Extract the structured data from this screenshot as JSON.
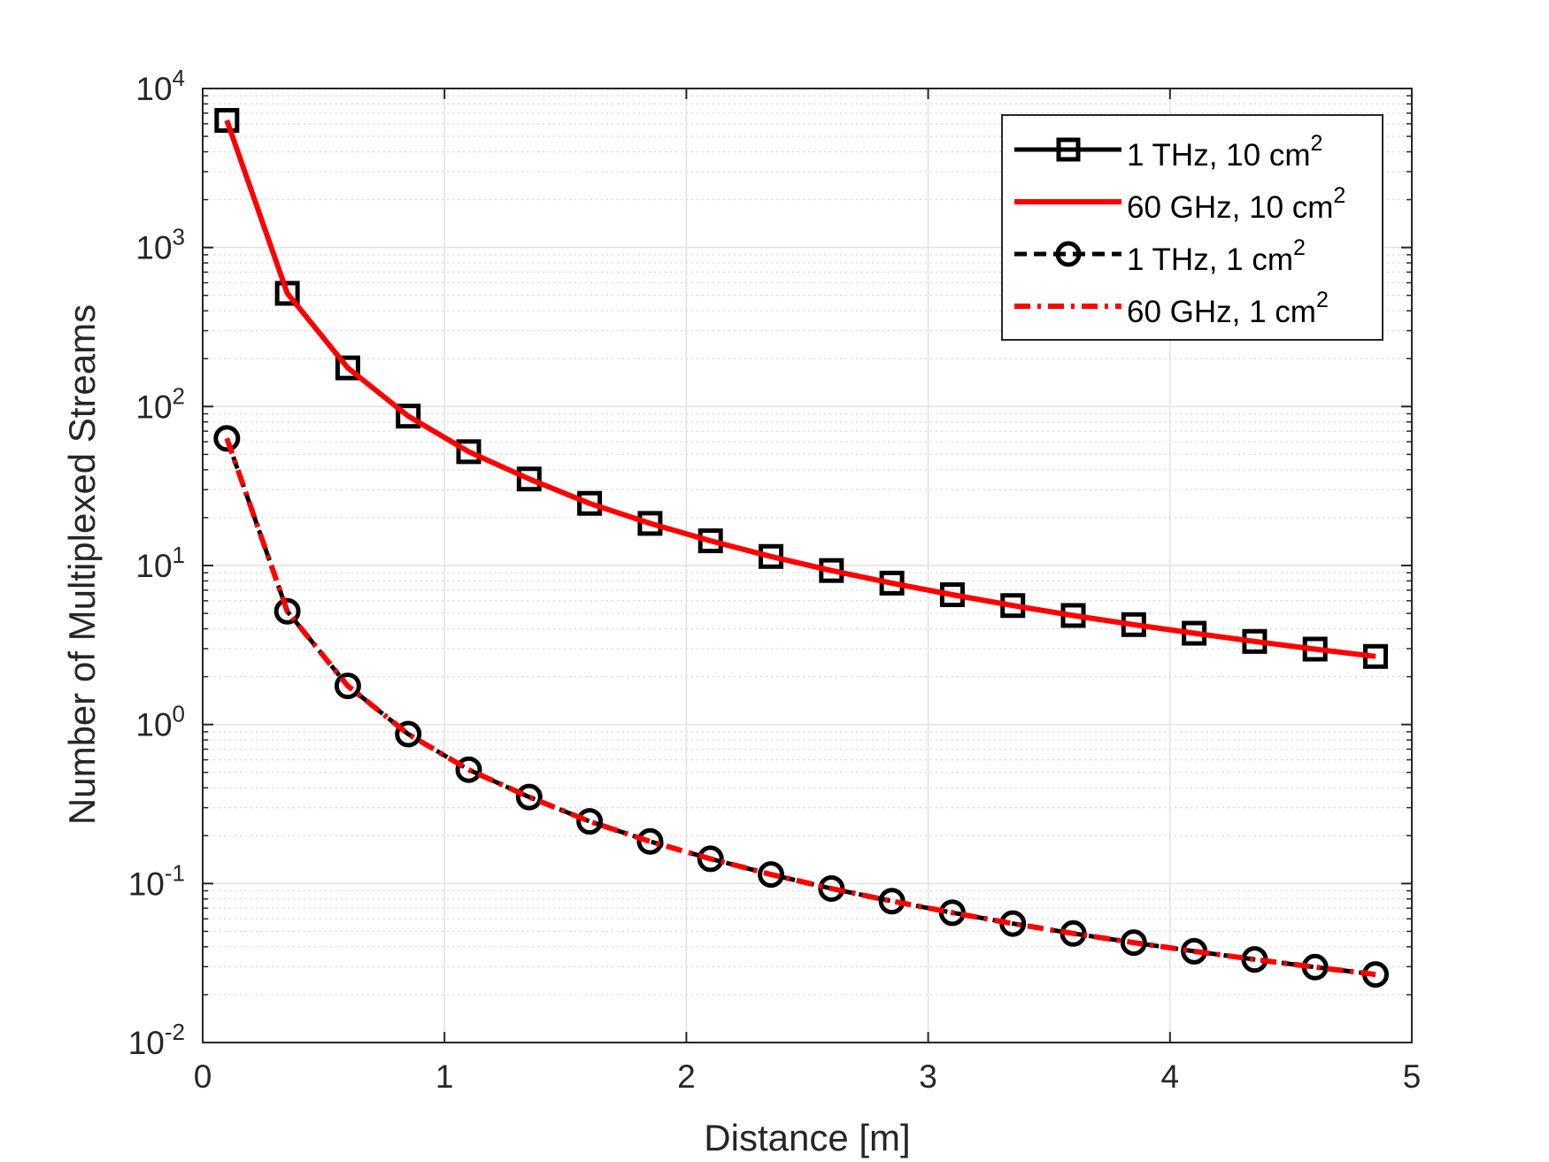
{
  "chart_data": {
    "type": "line",
    "xlabel": "Distance [m]",
    "ylabel": "Number of Multiplexed Streams",
    "xlim": [
      0,
      5
    ],
    "ylim": [
      0.01,
      10000
    ],
    "yscale": "log",
    "grid": true,
    "minor_grid": true,
    "x_ticks": [
      "0",
      "1",
      "2",
      "3",
      "4",
      "5"
    ],
    "y_ticks": [
      {
        "base": "10",
        "exp": "-2"
      },
      {
        "base": "10",
        "exp": "-1"
      },
      {
        "base": "10",
        "exp": "0"
      },
      {
        "base": "10",
        "exp": "1"
      },
      {
        "base": "10",
        "exp": "2"
      },
      {
        "base": "10",
        "exp": "3"
      },
      {
        "base": "10",
        "exp": "4"
      }
    ],
    "legend_position": "top-right",
    "legend": [
      {
        "label": "1 THz, 10 cm",
        "sup": "2"
      },
      {
        "label": "60 GHz, 10 cm",
        "sup": "2"
      },
      {
        "label": "1 THz, 1 cm",
        "sup": "2"
      },
      {
        "label": "60 GHz, 1 cm",
        "sup": "2"
      }
    ],
    "x": [
      0.1,
      0.35,
      0.6,
      0.85,
      1.1,
      1.35,
      1.6,
      1.85,
      2.1,
      2.35,
      2.6,
      2.85,
      3.1,
      3.35,
      3.6,
      3.85,
      4.1,
      4.35,
      4.6,
      4.85
    ],
    "series": [
      {
        "name": "1 THz, 10 cm2",
        "color": "#000000",
        "style": "solid",
        "marker": "square",
        "values": [
          6300,
          515,
          175,
          87,
          52,
          35,
          24.6,
          18.4,
          14.3,
          11.4,
          9.3,
          7.75,
          6.55,
          5.6,
          4.85,
          4.25,
          3.75,
          3.33,
          2.98,
          2.68
        ]
      },
      {
        "name": "60 GHz, 10 cm2",
        "color": "#ff0000",
        "style": "solid",
        "marker": "none",
        "values": [
          6300,
          515,
          175,
          87,
          52,
          35,
          24.6,
          18.4,
          14.3,
          11.4,
          9.3,
          7.75,
          6.55,
          5.6,
          4.85,
          4.25,
          3.75,
          3.33,
          2.98,
          2.68
        ]
      },
      {
        "name": "1 THz, 1 cm2",
        "color": "#000000",
        "style": "dashed",
        "marker": "circle",
        "values": [
          63,
          5.15,
          1.75,
          0.87,
          0.52,
          0.35,
          0.246,
          0.184,
          0.143,
          0.114,
          0.093,
          0.0775,
          0.0655,
          0.056,
          0.0485,
          0.0425,
          0.0375,
          0.0333,
          0.0298,
          0.0268
        ]
      },
      {
        "name": "60 GHz, 1 cm2",
        "color": "#ff0000",
        "style": "dashdot",
        "marker": "none",
        "values": [
          63,
          5.15,
          1.75,
          0.87,
          0.52,
          0.35,
          0.246,
          0.184,
          0.143,
          0.114,
          0.093,
          0.0775,
          0.0655,
          0.056,
          0.0485,
          0.0425,
          0.0375,
          0.0333,
          0.0298,
          0.0268
        ]
      }
    ]
  }
}
